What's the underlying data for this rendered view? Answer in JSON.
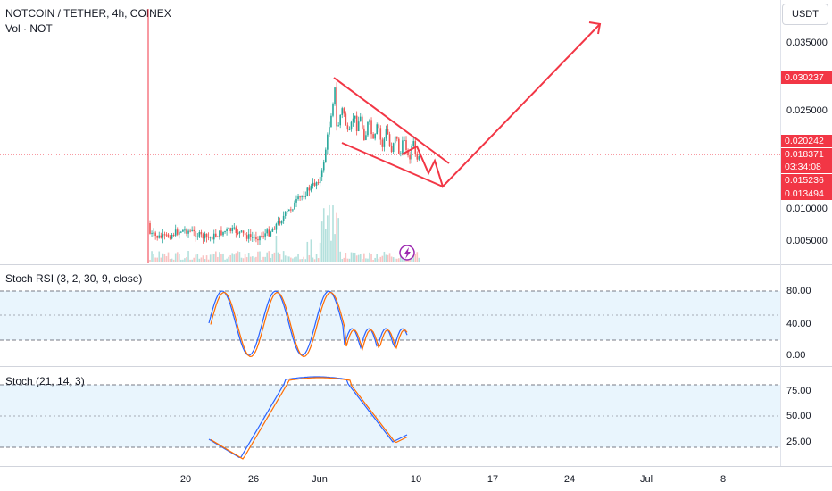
{
  "header": {
    "title": "NOTCOIN / TETHER, 4h, COINEX",
    "vol_label": "Vol · NOT",
    "currency_button": "USDT"
  },
  "price_axis": {
    "ticks": [
      "0.035000",
      "0.025000",
      "0.010000",
      "0.005000"
    ],
    "tags": [
      {
        "label": "0.030237",
        "color": "#f23645"
      },
      {
        "label": "0.020242",
        "color": "#f23645"
      },
      {
        "label": "0.018371",
        "color": "#f23645"
      },
      {
        "label": "03:34:08",
        "color": "#f23645"
      },
      {
        "label": "0.015236",
        "color": "#f23645"
      },
      {
        "label": "0.013494",
        "color": "#f23645"
      }
    ]
  },
  "stoch_rsi": {
    "title": "Stoch RSI (3, 2, 30, 9, close)",
    "ticks": [
      "80.00",
      "40.00",
      "0.00"
    ]
  },
  "stoch": {
    "title": "Stoch (21, 14, 3)",
    "ticks": [
      "75.00",
      "50.00",
      "25.00"
    ]
  },
  "time_axis": {
    "labels": [
      "20",
      "26",
      "Jun",
      "10",
      "17",
      "24",
      "Jul",
      "8"
    ]
  },
  "colors": {
    "up": "#26a69a",
    "down": "#ef5350",
    "drawing": "#f23645",
    "k_line": "#2962ff",
    "d_line": "#ff6d00",
    "band": "#e3f2fd"
  },
  "icons": [
    "lightning-icon"
  ]
}
